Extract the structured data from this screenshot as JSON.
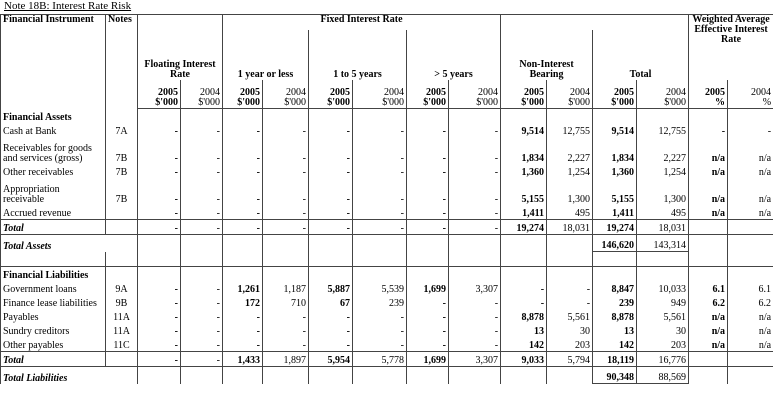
{
  "title": "Note 18B: Interest Rate Risk",
  "header": {
    "instrument": "Financial Instrument",
    "notes": "Notes",
    "fixed": "Fixed Interest Rate",
    "weighted": "Weighted Average Effective Interest Rate",
    "groups": [
      "Floating Interest Rate",
      "1 year or less",
      "1 to 5  years",
      "> 5 years",
      "Non-Interest Bearing",
      "Total"
    ],
    "columns": [
      {
        "year": "2005",
        "unit": "$'000"
      },
      {
        "year": "2004",
        "unit": "$'000"
      },
      {
        "year": "2005",
        "unit": "$'000"
      },
      {
        "year": "2004",
        "unit": "$'000"
      },
      {
        "year": "2005",
        "unit": "$'000"
      },
      {
        "year": "2004",
        "unit": "$'000"
      },
      {
        "year": "2005",
        "unit": "$'000"
      },
      {
        "year": "2004",
        "unit": "$'000"
      },
      {
        "year": "2005",
        "unit": "$'000"
      },
      {
        "year": "2004",
        "unit": "$'000"
      },
      {
        "year": "2005",
        "unit": "$'000"
      },
      {
        "year": "2004",
        "unit": "$'000"
      },
      {
        "year": "2005",
        "unit": "%"
      },
      {
        "year": "2004",
        "unit": "%"
      }
    ]
  },
  "sections": [
    {
      "title": "Financial Assets",
      "rows": [
        {
          "label": "Cash at Bank",
          "note": "7A",
          "values": [
            "-",
            "-",
            "-",
            "-",
            "-",
            "-",
            "-",
            "-",
            "9,514",
            "12,755",
            "9,514",
            "12,755",
            "-",
            "-"
          ]
        },
        {
          "label": "Receivables for goods and services (gross)",
          "note": "7B",
          "values": [
            "-",
            "-",
            "-",
            "-",
            "-",
            "-",
            "-",
            "-",
            "1,834",
            "2,227",
            "1,834",
            "2,227",
            "n/a",
            "n/a"
          ]
        },
        {
          "label": "Other receivables",
          "note": "7B",
          "values": [
            "-",
            "-",
            "-",
            "-",
            "-",
            "-",
            "-",
            "-",
            "1,360",
            "1,254",
            "1,360",
            "1,254",
            "n/a",
            "n/a"
          ]
        },
        {
          "label": "Appropriation receivable",
          "note": "7B",
          "values": [
            "-",
            "-",
            "-",
            "-",
            "-",
            "-",
            "-",
            "-",
            "5,155",
            "1,300",
            "5,155",
            "1,300",
            "n/a",
            "n/a"
          ]
        },
        {
          "label": "Accrued revenue",
          "note": null,
          "values": [
            "-",
            "-",
            "-",
            "-",
            "-",
            "-",
            "-",
            "-",
            "1,411",
            "495",
            "1,411",
            "495",
            "n/a",
            "n/a"
          ]
        }
      ],
      "total": {
        "label": "Total",
        "values": [
          "-",
          "-",
          "-",
          "-",
          "-",
          "-",
          "-",
          "-",
          "19,274",
          "18,031",
          "19,274",
          "18,031",
          null,
          null
        ]
      },
      "grand_total": {
        "label": "Total Assets",
        "values": [
          "146,620",
          "143,314"
        ]
      }
    },
    {
      "title": "Financial Liabilities",
      "rows": [
        {
          "label": "Government loans",
          "note": "9A",
          "values": [
            "-",
            "-",
            "1,261",
            "1,187",
            "5,887",
            "5,539",
            "1,699",
            "3,307",
            "-",
            "-",
            "8,847",
            "10,033",
            "6.1",
            "6.1"
          ]
        },
        {
          "label": "Finance lease liabilities",
          "note": "9B",
          "values": [
            "-",
            "-",
            "172",
            "710",
            "67",
            "239",
            "-",
            "-",
            "-",
            "-",
            "239",
            "949",
            "6.2",
            "6.2"
          ]
        },
        {
          "label": "Payables",
          "note": "11A",
          "values": [
            "-",
            "-",
            "-",
            "-",
            "-",
            "-",
            "-",
            "-",
            "8,878",
            "5,561",
            "8,878",
            "5,561",
            "n/a",
            "n/a"
          ]
        },
        {
          "label": "Sundry creditors",
          "note": "11A",
          "values": [
            "-",
            "-",
            "-",
            "-",
            "-",
            "-",
            "-",
            "-",
            "13",
            "30",
            "13",
            "30",
            "n/a",
            "n/a"
          ]
        },
        {
          "label": "Other payables",
          "note": "11C",
          "values": [
            "-",
            "-",
            "-",
            "-",
            "-",
            "-",
            "-",
            "-",
            "142",
            "203",
            "142",
            "203",
            "n/a",
            "n/a"
          ]
        }
      ],
      "total": {
        "label": "Total",
        "values": [
          "-",
          "-",
          "1,433",
          "1,897",
          "5,954",
          "5,778",
          "1,699",
          "3,307",
          "9,033",
          "5,794",
          "18,119",
          "16,776",
          null,
          null
        ]
      },
      "grand_total": {
        "label": "Total Liabilities",
        "values": [
          "90,348",
          "88,569"
        ]
      }
    }
  ]
}
